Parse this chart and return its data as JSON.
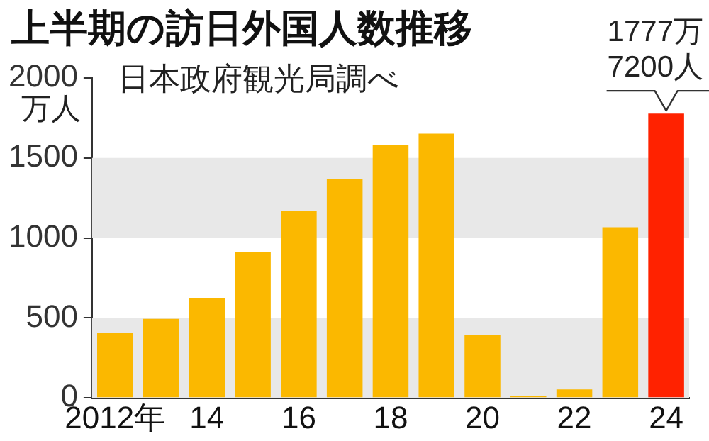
{
  "chart_data": {
    "type": "bar",
    "title": "上半期の訪日外国人数推移",
    "ylabel": "万人",
    "annotations": [
      "日本政府観光局調べ",
      {
        "text": "1777万\n7200人",
        "x": "24",
        "y": 1777.72
      }
    ],
    "categories": [
      "2012年",
      null,
      "14",
      null,
      "16",
      null,
      "18",
      null,
      "20",
      null,
      "22",
      null,
      "24"
    ],
    "values": [
      406,
      494,
      623,
      911,
      1170,
      1370,
      1581,
      1652,
      391,
      10,
      53,
      1067,
      1777.72
    ],
    "colors": [
      "#fbb800",
      "#fbb800",
      "#fbb800",
      "#fbb800",
      "#fbb800",
      "#fbb800",
      "#fbb800",
      "#fbb800",
      "#fbb800",
      "#fbb800",
      "#fbb800",
      "#fbb800",
      "#ff2200"
    ],
    "ylim": [
      0,
      2000
    ],
    "yticks": [
      0,
      500,
      1000,
      1500,
      2000
    ],
    "grid": false,
    "legend": false,
    "bands": [
      {
        "axis": "y",
        "from": 0,
        "to": 500,
        "color": "#e8e8e8"
      },
      {
        "axis": "y",
        "from": 1000,
        "to": 1500,
        "color": "#e8e8e8"
      }
    ]
  }
}
